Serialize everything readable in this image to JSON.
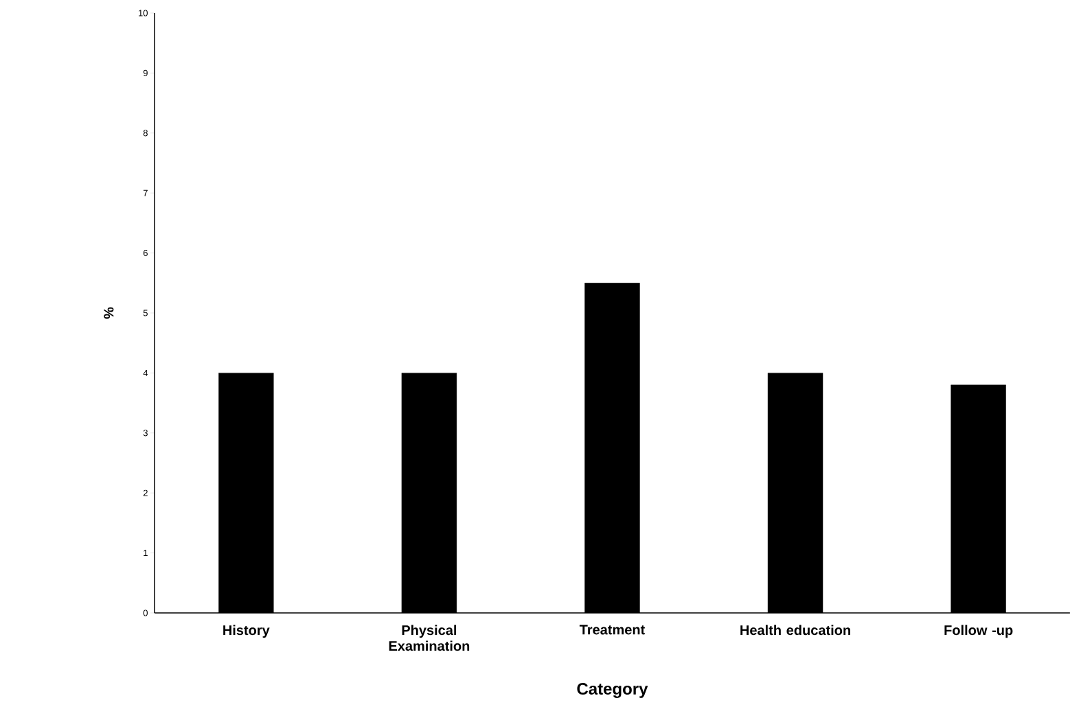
{
  "chart_data": {
    "type": "bar",
    "xlabel": "Category",
    "ylabel": "%",
    "categories": [
      "History",
      "Physical Examination",
      "Treatment",
      "Health education",
      "Follow -up"
    ],
    "values": [
      4.0,
      4.0,
      5.5,
      4.0,
      3.8
    ],
    "color": "#000000",
    "ylim": [
      0,
      10
    ],
    "yticks": [
      0,
      1,
      2,
      3,
      4,
      5,
      6,
      7,
      8,
      9,
      10
    ],
    "grid": false
  }
}
